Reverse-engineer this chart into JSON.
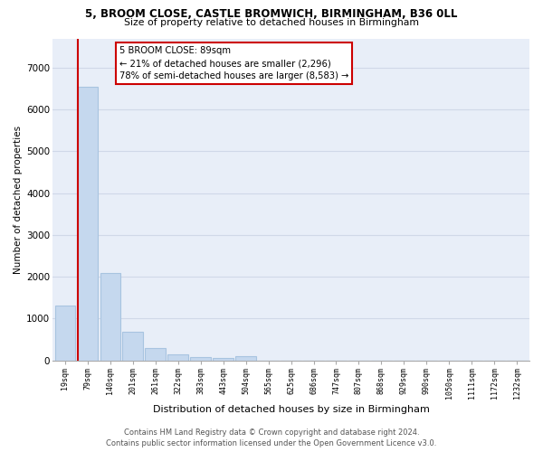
{
  "title_line1": "5, BROOM CLOSE, CASTLE BROMWICH, BIRMINGHAM, B36 0LL",
  "title_line2": "Size of property relative to detached houses in Birmingham",
  "xlabel": "Distribution of detached houses by size in Birmingham",
  "ylabel": "Number of detached properties",
  "bar_color": "#c5d8ee",
  "bar_edge_color": "#a8c4e0",
  "background_color": "#e8eef8",
  "grid_color": "#d0d8e8",
  "categories": [
    "19sqm",
    "79sqm",
    "140sqm",
    "201sqm",
    "261sqm",
    "322sqm",
    "383sqm",
    "443sqm",
    "504sqm",
    "565sqm",
    "625sqm",
    "686sqm",
    "747sqm",
    "807sqm",
    "868sqm",
    "929sqm",
    "990sqm",
    "1050sqm",
    "1111sqm",
    "1172sqm",
    "1232sqm"
  ],
  "values": [
    1300,
    6550,
    2080,
    680,
    290,
    145,
    80,
    50,
    105,
    0,
    0,
    0,
    0,
    0,
    0,
    0,
    0,
    0,
    0,
    0,
    0
  ],
  "vline_color": "#cc0000",
  "vline_x": 0.55,
  "annotation_line1": "5 BROOM CLOSE: 89sqm",
  "annotation_line2": "← 21% of detached houses are smaller (2,296)",
  "annotation_line3": "78% of semi-detached houses are larger (8,583) →",
  "annotation_box_facecolor": "#ffffff",
  "annotation_box_edgecolor": "#cc0000",
  "ylim_max": 7700,
  "yticks": [
    0,
    1000,
    2000,
    3000,
    4000,
    5000,
    6000,
    7000
  ],
  "footer_line1": "Contains HM Land Registry data © Crown copyright and database right 2024.",
  "footer_line2": "Contains public sector information licensed under the Open Government Licence v3.0."
}
